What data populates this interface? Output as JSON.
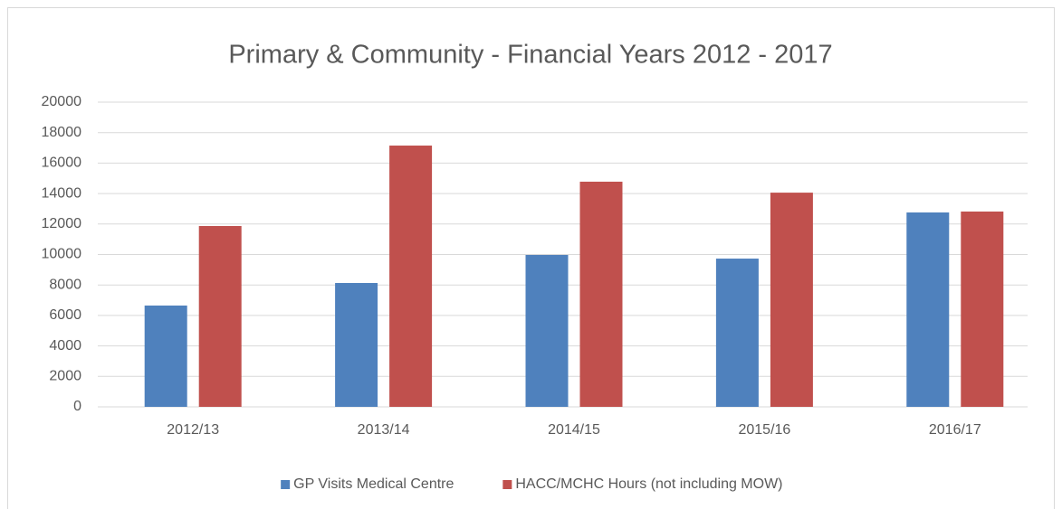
{
  "chart_data": {
    "type": "bar",
    "title": "Primary & Community - Financial Years 2012 - 2017",
    "categories": [
      "2012/13",
      "2013/14",
      "2014/15",
      "2015/16",
      "2016/17"
    ],
    "series": [
      {
        "name": "GP Visits Medical Centre",
        "color": "#4f81bd",
        "values": [
          6650,
          8130,
          9970,
          9730,
          12760
        ]
      },
      {
        "name": "HACC/MCHC Hours (not including MOW)",
        "color": "#c0504d",
        "values": [
          11870,
          17150,
          14780,
          14060,
          12820
        ]
      }
    ],
    "ylim": [
      0,
      20000
    ],
    "yticks": [
      0,
      2000,
      4000,
      6000,
      8000,
      10000,
      12000,
      14000,
      16000,
      18000,
      20000
    ],
    "grid": true,
    "legend": "bottom"
  }
}
